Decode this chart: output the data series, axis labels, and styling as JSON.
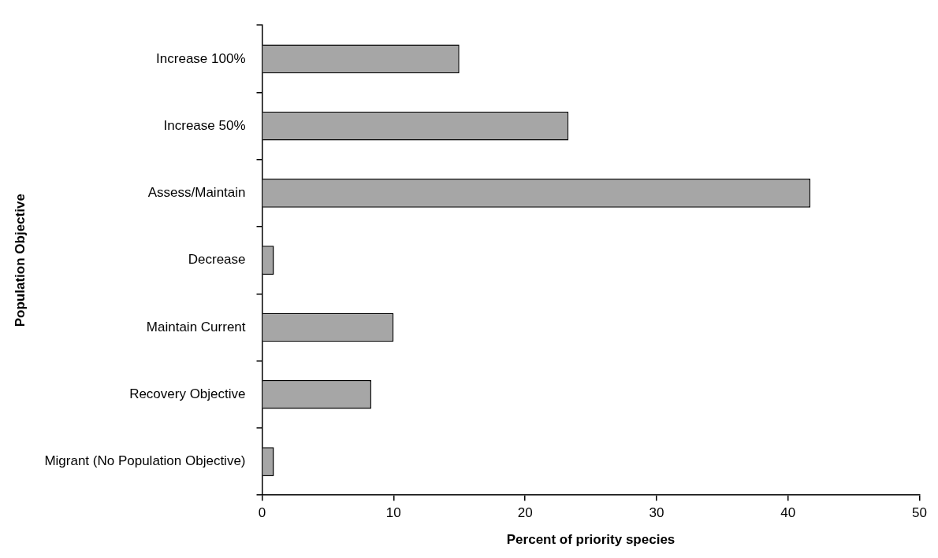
{
  "chart_data": {
    "type": "bar",
    "orientation": "horizontal",
    "xlabel": "Percent of priority species",
    "ylabel": "Population Objective",
    "categories": [
      "Increase 100%",
      "Increase 50%",
      "Assess/Maintain",
      "Decrease",
      "Maintain Current",
      "Recovery Objective",
      "Migrant (No Population Objective)"
    ],
    "values": [
      15.0,
      23.3,
      41.7,
      0.9,
      10.0,
      8.3,
      0.9
    ],
    "color": "#a6a6a6",
    "xlim": [
      0,
      50
    ],
    "xticks": [
      0,
      10,
      20,
      30,
      40,
      50
    ],
    "grid": false,
    "legend": false
  }
}
